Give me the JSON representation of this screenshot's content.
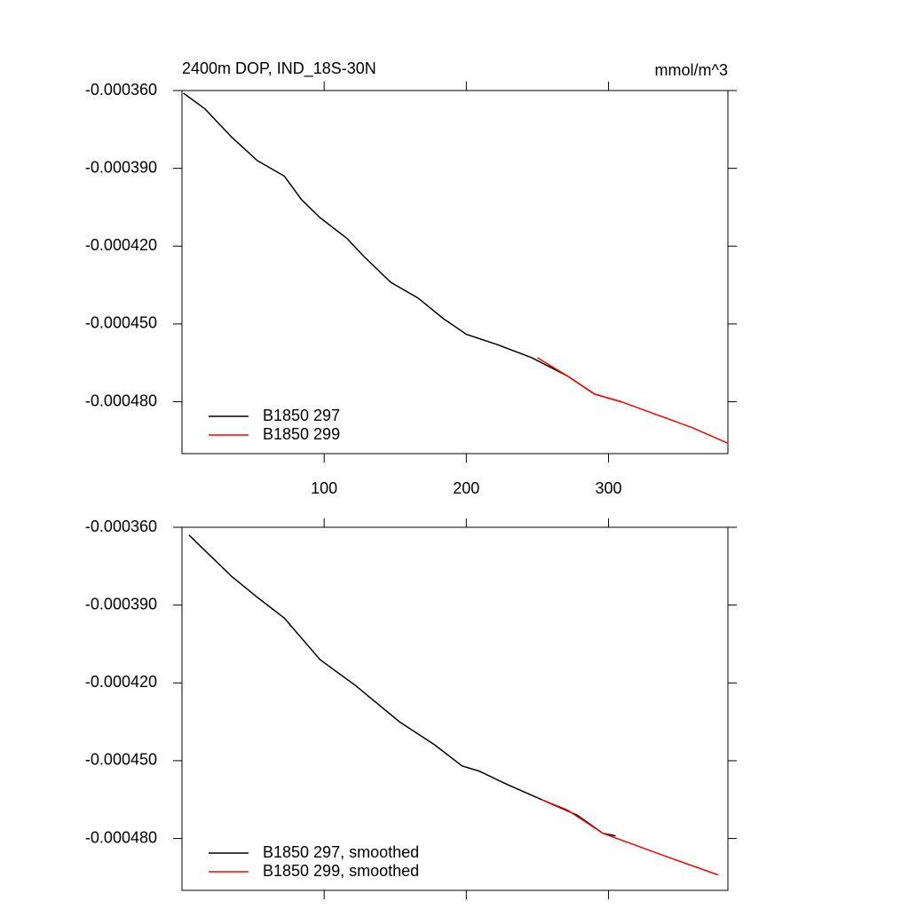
{
  "chart_data": [
    {
      "type": "line",
      "title": "2400m DOP, IND_18S-30N",
      "units": "mmol/m^3",
      "xlim": [
        0,
        384
      ],
      "xticks": [
        100,
        200,
        300
      ],
      "xtick_labels": true,
      "ylim": [
        -0.0005,
        -0.00036
      ],
      "yticks": [
        {
          "value": -0.00036,
          "label": "-0.000360"
        },
        {
          "value": -0.00039,
          "label": "-0.000390"
        },
        {
          "value": -0.00042,
          "label": "-0.000420"
        },
        {
          "value": -0.00045,
          "label": "-0.000450"
        },
        {
          "value": -0.00048,
          "label": "-0.000480"
        }
      ],
      "legend": "lower left",
      "series": [
        {
          "name": "B1850 297",
          "color": "#000000",
          "x": [
            1,
            16,
            35,
            53,
            72,
            84,
            97,
            116,
            128,
            147,
            166,
            184,
            200,
            222,
            246,
            271,
            290,
            309
          ],
          "values": [
            -0.000361,
            -0.000367,
            -0.000378,
            -0.000387,
            -0.000393,
            -0.000402,
            -0.000409,
            -0.000417,
            -0.000424,
            -0.000434,
            -0.00044,
            -0.000448,
            -0.000454,
            -0.000458,
            -0.000463,
            -0.00047,
            -0.000477,
            -0.00048
          ]
        },
        {
          "name": "B1850 299",
          "color": "#ff0000",
          "x": [
            250,
            271,
            290,
            309,
            334,
            359,
            384
          ],
          "values": [
            -0.000463,
            -0.00047,
            -0.000477,
            -0.00048,
            -0.000485,
            -0.00049,
            -0.000496
          ]
        }
      ]
    },
    {
      "type": "line",
      "xlim": [
        0,
        384
      ],
      "xticks": [
        100,
        200,
        300
      ],
      "xtick_labels": false,
      "ylim": [
        -0.0005,
        -0.00036
      ],
      "yticks": [
        {
          "value": -0.00036,
          "label": "-0.000360"
        },
        {
          "value": -0.00039,
          "label": "-0.000390"
        },
        {
          "value": -0.00042,
          "label": "-0.000420"
        },
        {
          "value": -0.00045,
          "label": "-0.000450"
        },
        {
          "value": -0.00048,
          "label": "-0.000480"
        }
      ],
      "legend": "lower left",
      "series": [
        {
          "name": "B1850 297, smoothed",
          "color": "#000000",
          "x": [
            5,
            35,
            53,
            72,
            97,
            122,
            153,
            178,
            197,
            209,
            228,
            253,
            278,
            296,
            305
          ],
          "values": [
            -0.000363,
            -0.000379,
            -0.000387,
            -0.000395,
            -0.000411,
            -0.000421,
            -0.000435,
            -0.000444,
            -0.000452,
            -0.000454,
            -0.000459,
            -0.000465,
            -0.000471,
            -0.000478,
            -0.000479
          ]
        },
        {
          "name": "B1850 299, smoothed",
          "color": "#ff0000",
          "x": [
            253,
            271,
            296,
            321,
            346,
            377
          ],
          "values": [
            -0.000465,
            -0.000469,
            -0.000478,
            -0.000483,
            -0.000488,
            -0.000494
          ]
        }
      ]
    }
  ]
}
